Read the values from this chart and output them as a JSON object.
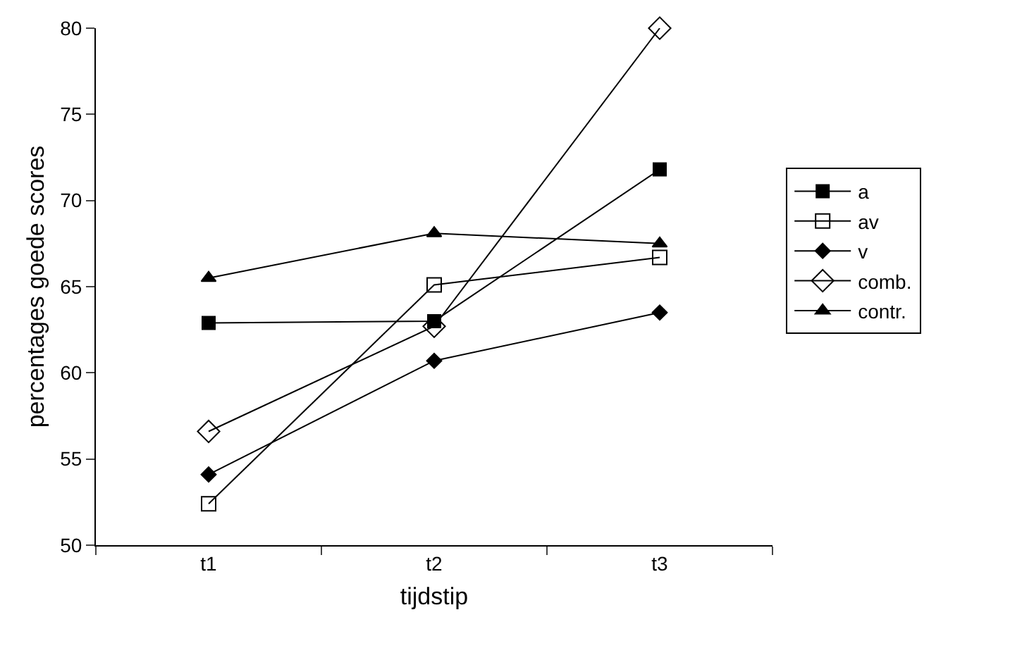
{
  "chart_data": {
    "type": "line",
    "xlabel": "tijdstip",
    "ylabel": "percentages goede scores",
    "categories": [
      "t1",
      "t2",
      "t3"
    ],
    "series": [
      {
        "name": "a",
        "color": "#000000",
        "marker": "square",
        "values": [
          62.9,
          63.0,
          71.8
        ]
      },
      {
        "name": "av",
        "color": "#000000",
        "marker": "square-open",
        "values": [
          52.4,
          65.1,
          66.7
        ]
      },
      {
        "name": "v",
        "color": "#000000",
        "marker": "diamond",
        "values": [
          54.1,
          60.7,
          63.5
        ]
      },
      {
        "name": "comb.",
        "color": "#000000",
        "marker": "diamond-open",
        "values": [
          56.6,
          62.7,
          80.0
        ]
      },
      {
        "name": "contr.",
        "color": "#000000",
        "marker": "triangle",
        "values": [
          65.5,
          68.1,
          67.5
        ]
      }
    ],
    "ylim": [
      50,
      80
    ],
    "yticks": [
      50,
      55,
      60,
      65,
      70,
      75,
      80
    ],
    "grid": false,
    "legend": "right",
    "line_style": "solid"
  }
}
